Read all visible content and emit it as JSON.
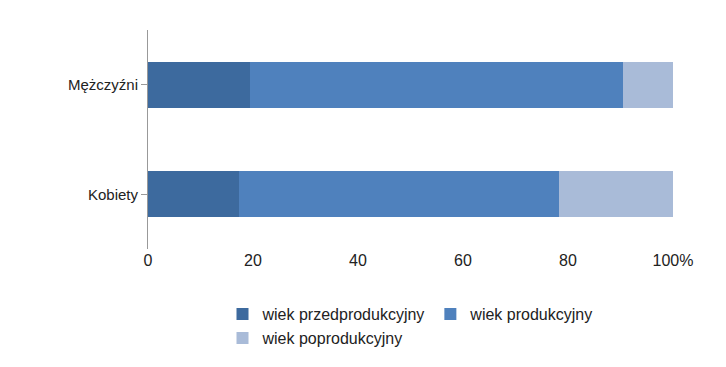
{
  "chart_data": {
    "type": "bar",
    "orientation": "horizontal",
    "stacked": true,
    "grid": false,
    "legend": "bottom",
    "categories": [
      "Mężczyźni",
      "Kobiety"
    ],
    "series": [
      {
        "name": "wiek przedprodukcyjny",
        "color": "#3d6a9e",
        "values": [
          19.5,
          17.3
        ]
      },
      {
        "name": "wiek produkcyjny",
        "color": "#4f81bd",
        "values": [
          71.0,
          61.0
        ]
      },
      {
        "name": "wiek poprodukcyjny",
        "color": "#a9bbd8",
        "values": [
          9.5,
          21.7
        ]
      }
    ],
    "xlim": [
      0,
      100
    ],
    "xticks": [
      0,
      20,
      40,
      60,
      80,
      {
        "value": 100,
        "label": "100%"
      }
    ]
  }
}
